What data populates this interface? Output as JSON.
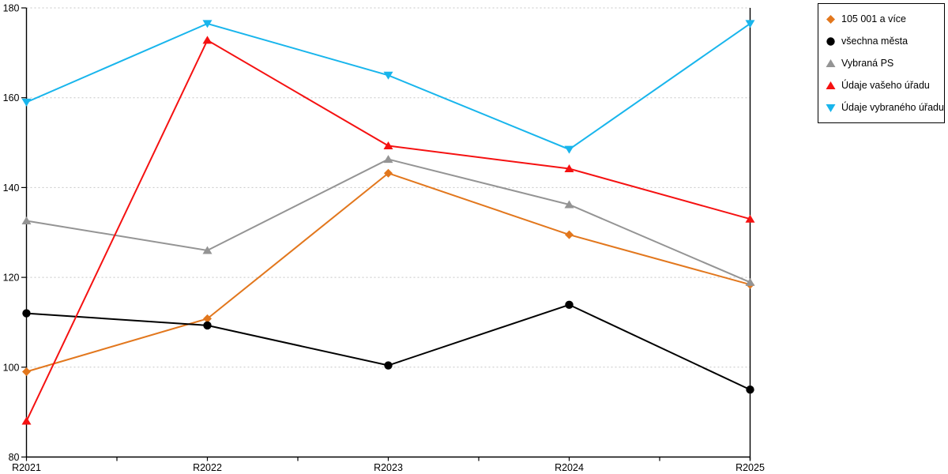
{
  "colors": {
    "background": "#ffffff",
    "axis": "#000000",
    "gridline": "#c6c6c6",
    "legend_border": "#000000",
    "orange": "#e2771d",
    "black": "#000000",
    "gray": "#949494",
    "red": "#f51111",
    "cyan": "#18b5ec"
  },
  "chart_data": {
    "type": "line",
    "title": "",
    "xlabel": "",
    "ylabel": "",
    "categories": [
      "R2021",
      "R2022",
      "R2023",
      "R2024",
      "R2025"
    ],
    "series": [
      {
        "name": "105 001 a více",
        "marker": "diamond",
        "color": "#e2771d",
        "values": [
          99,
          110.8,
          143.2,
          129.5,
          118.4
        ]
      },
      {
        "name": "všechna města",
        "marker": "circle",
        "color": "#000000",
        "values": [
          112,
          109.3,
          100.4,
          113.9,
          95
        ]
      },
      {
        "name": "Vybraná PS",
        "marker": "triangle-up",
        "color": "#949494",
        "values": [
          132.6,
          126,
          146.3,
          136.2,
          118.9
        ]
      },
      {
        "name": "Údaje vašeho úřadu",
        "marker": "triangle-up",
        "color": "#f51111",
        "values": [
          88,
          172.8,
          149.3,
          144.2,
          133
        ]
      },
      {
        "name": "Údaje vybraného úřadu",
        "marker": "triangle-down",
        "color": "#18b5ec",
        "values": [
          159,
          176.5,
          165,
          148.5,
          176.5
        ]
      }
    ],
    "ylim": [
      80,
      180
    ],
    "yticks": [
      80,
      100,
      120,
      140,
      160,
      180
    ],
    "grid": "horizontal-dotted",
    "minor_x_ticks_between_categories": true,
    "legend_position": "top-right"
  }
}
